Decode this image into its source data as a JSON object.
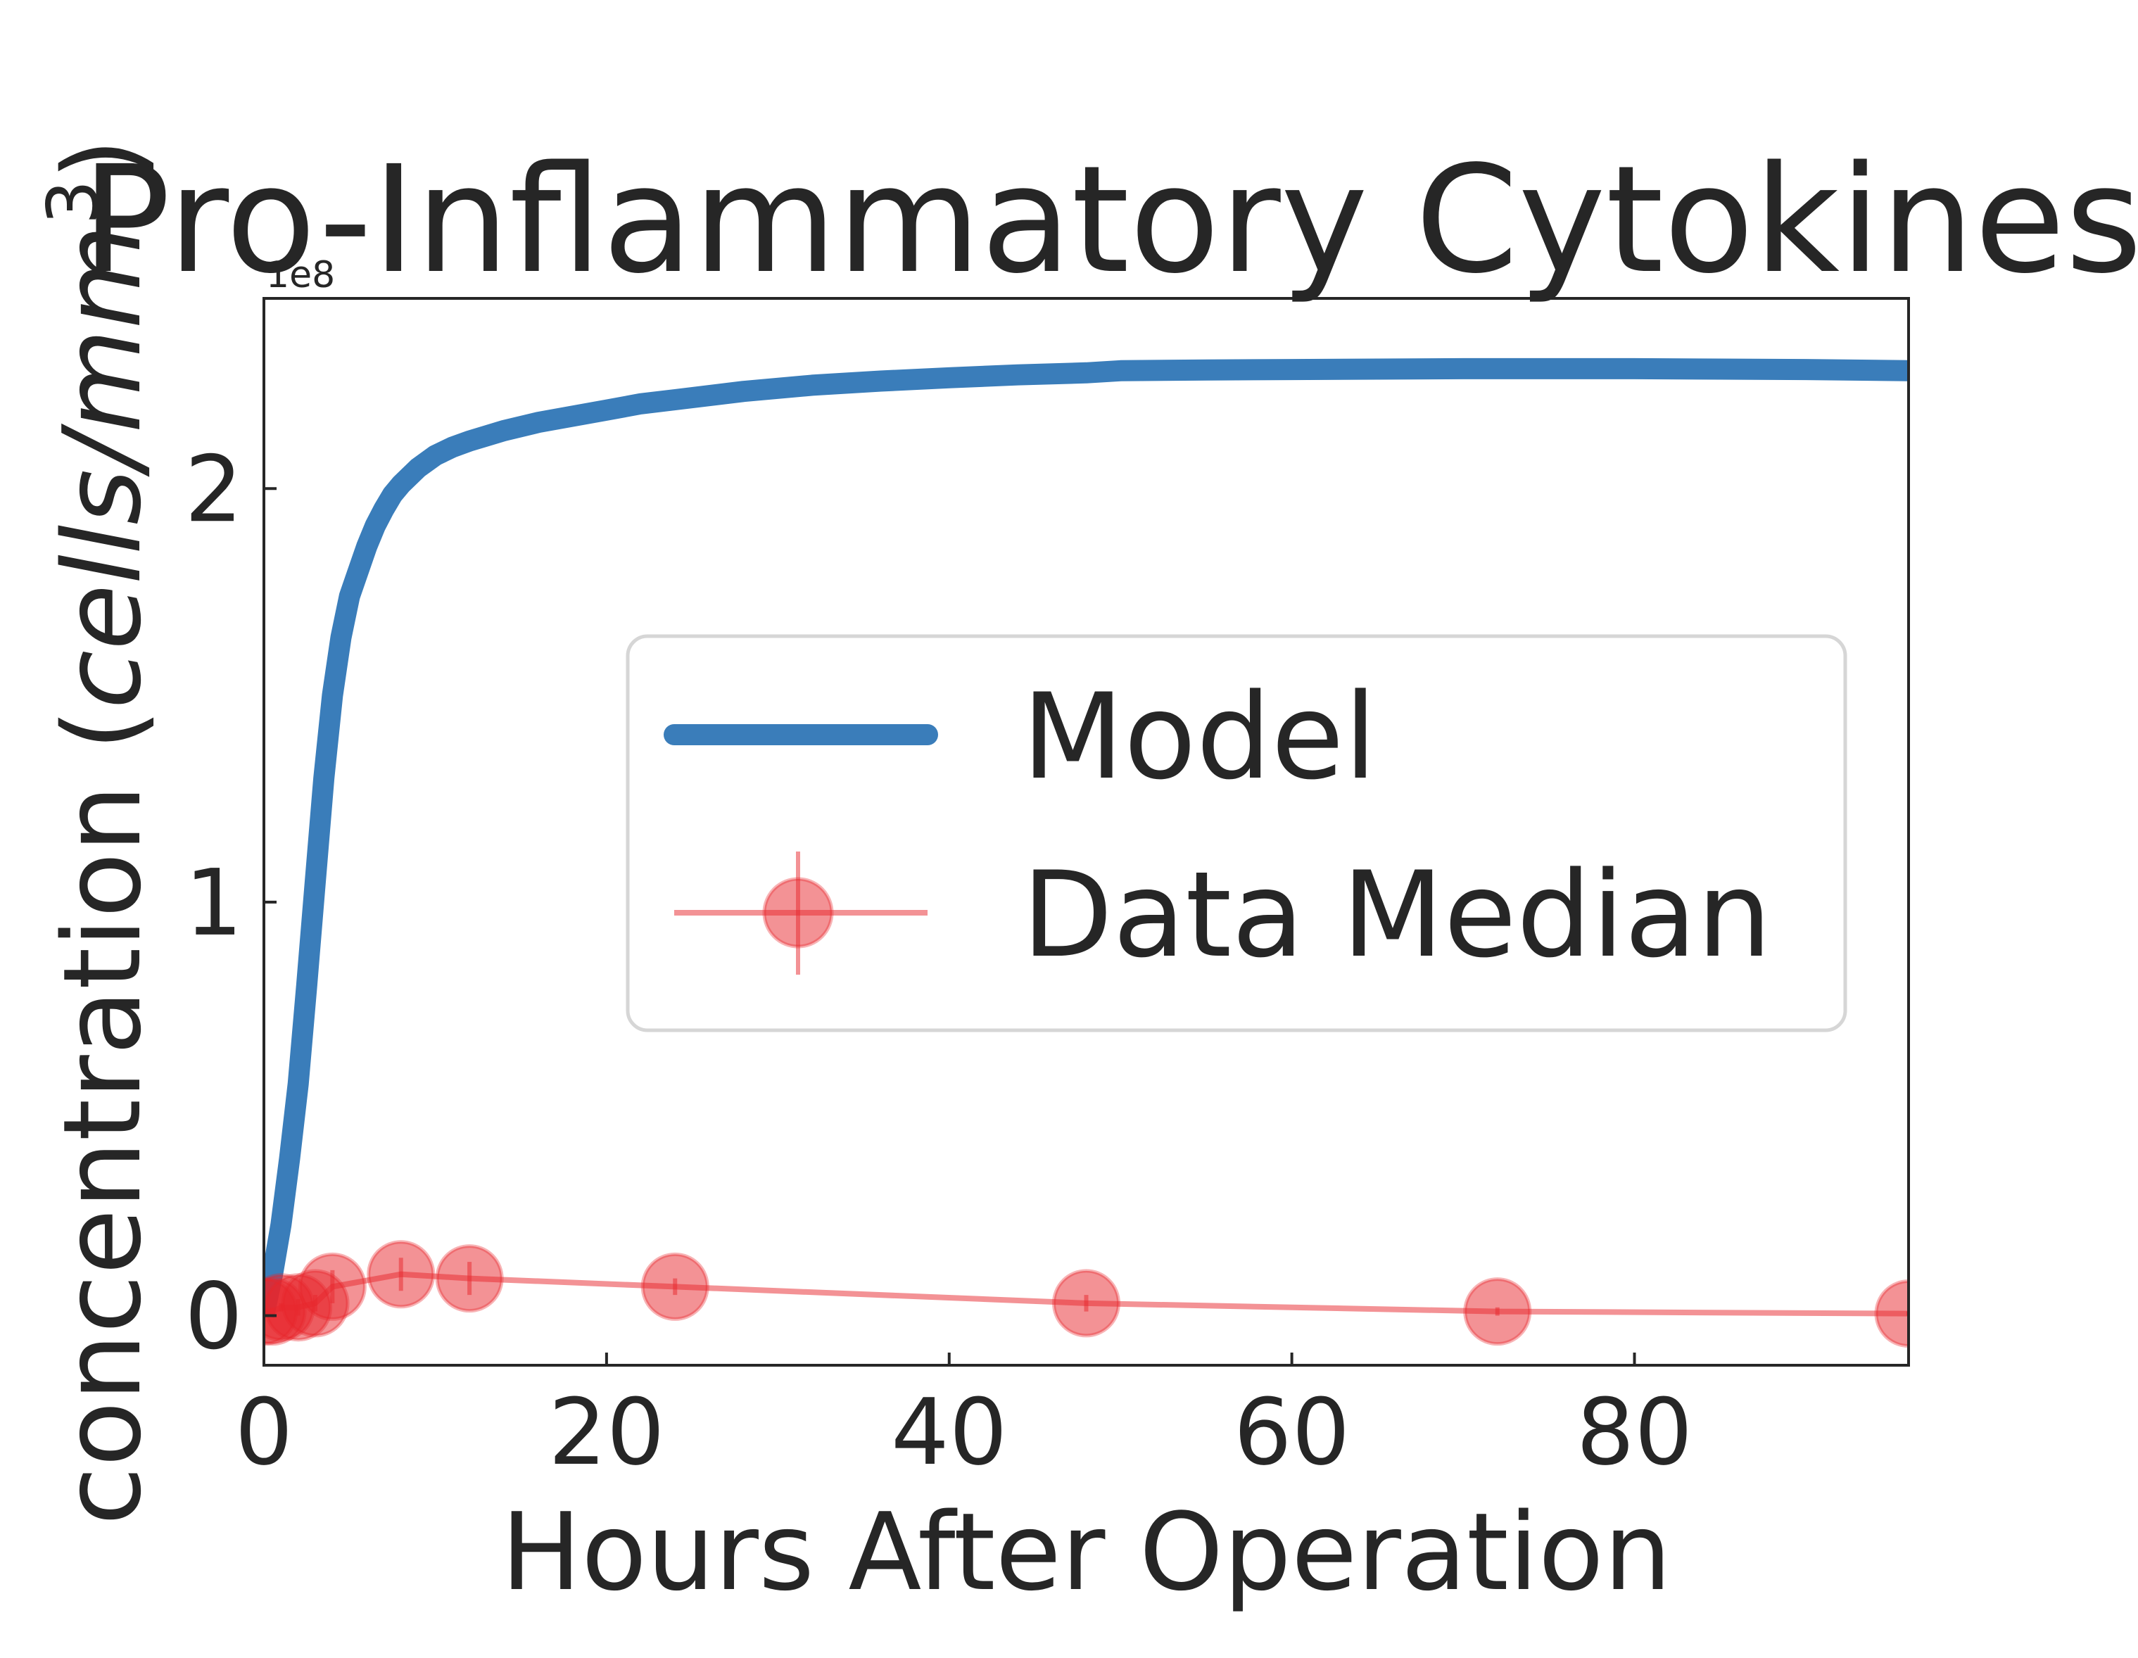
{
  "chart_data": {
    "type": "line",
    "title": "Pro-Inflammatory Cytokines",
    "xlabel": "Hours After Operation",
    "ylabel": "concentration (cells/mm³)",
    "ylabel_parts": {
      "prefix": "concentration (",
      "unit_italic": "cells/mm",
      "sup": "3",
      "suffix": ")"
    },
    "y_offset_label": "1e8",
    "xlim": [
      0,
      96
    ],
    "ylim": [
      -0.12,
      2.46
    ],
    "y_scale_factor": 100000000,
    "x_ticks": [
      0,
      20,
      40,
      60,
      80
    ],
    "x_tick_labels": [
      "0",
      "20",
      "40",
      "60",
      "80"
    ],
    "y_ticks": [
      0,
      1,
      2
    ],
    "y_tick_labels": [
      "0",
      "1",
      "2"
    ],
    "grid": false,
    "legend_position": "center-right",
    "series": [
      {
        "name": "Model",
        "kind": "line",
        "color": "#3a7dba",
        "x": [
          0,
          0.5,
          1,
          1.5,
          2,
          2.5,
          3,
          3.5,
          4,
          4.5,
          5,
          5.5,
          6,
          6.5,
          7,
          7.5,
          8,
          9,
          10,
          11,
          12,
          14,
          16,
          18,
          20,
          22,
          24,
          28,
          32,
          36,
          40,
          44,
          48,
          50,
          55,
          60,
          65,
          70,
          75,
          80,
          85,
          90,
          96
        ],
        "y": [
          0.0,
          0.1,
          0.22,
          0.38,
          0.56,
          0.8,
          1.05,
          1.3,
          1.5,
          1.64,
          1.74,
          1.8,
          1.86,
          1.91,
          1.95,
          1.985,
          2.01,
          2.05,
          2.08,
          2.1,
          2.115,
          2.14,
          2.16,
          2.175,
          2.19,
          2.205,
          2.215,
          2.235,
          2.25,
          2.26,
          2.268,
          2.275,
          2.28,
          2.285,
          2.287,
          2.288,
          2.289,
          2.29,
          2.29,
          2.29,
          2.289,
          2.288,
          2.285
        ]
      },
      {
        "name": "Data Median",
        "kind": "errorbar",
        "color": "#e8262b",
        "x": [
          0,
          0.5,
          1,
          2,
          3,
          4,
          8,
          12,
          24,
          48,
          72,
          96
        ],
        "y": [
          0.01,
          0.01,
          0.02,
          0.02,
          0.03,
          0.07,
          0.1,
          0.09,
          0.07,
          0.03,
          0.01,
          0.005
        ],
        "yerr": [
          0.01,
          0.01,
          0.01,
          0.02,
          0.02,
          0.04,
          0.04,
          0.04,
          0.02,
          0.02,
          0.01,
          0.005
        ]
      }
    ]
  }
}
